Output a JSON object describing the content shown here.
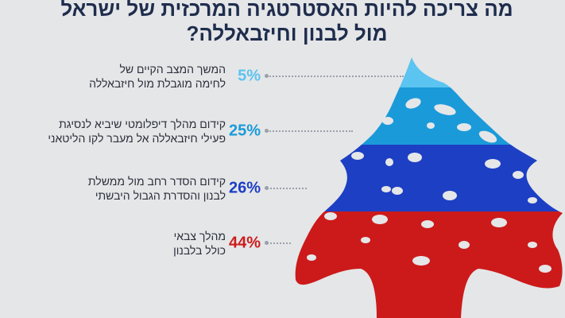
{
  "title": {
    "line1": "מה צריכה להיות האסטרטגיה המרכזית של ישראל",
    "line2": "מול לבנון וחיזבאללה?"
  },
  "chart_data": {
    "type": "bar",
    "categories": [
      "המשך המצב הקיים של לחימה מוגבלת מול חיזבאללה",
      "קידום מהלך דיפלומטי שיביא לנסיגת פעילי חיזבאללה אל מעבר לקו הליטאני",
      "קידום הסדר רחב מול ממשלת לבנון והסדרת הגבול היבשתי",
      "מהלך צבאי כולל בלבנון"
    ],
    "values": [
      5,
      25,
      26,
      44
    ],
    "unit": "%"
  },
  "rows": [
    {
      "pct": "5%",
      "line1": "המשך המצב הקיים של",
      "line2": "לחימה מוגבלת מול חיזבאללה",
      "color": "#5bc4f0"
    },
    {
      "pct": "25%",
      "line1": "קידום מהלך דיפלומטי שיביא לנסיגת",
      "line2": "פעילי חיזבאללה אל מעבר לקו הליטאני",
      "color": "#1a9ad9"
    },
    {
      "pct": "26%",
      "line1": "קידום הסדר רחב מול ממשלת",
      "line2": "לבנון והסדרת הגבול היבשתי",
      "color": "#1d3fc4"
    },
    {
      "pct": "44%",
      "line1": "מהלך צבאי",
      "line2": "כולל בלבנון",
      "color": "#cc1a1a"
    }
  ],
  "colors": {
    "light_blue": "#5bc4f0",
    "mid_blue": "#1a9ad9",
    "royal_blue": "#1d3fc4",
    "red": "#cc1a1a",
    "title": "#1f2d4d"
  }
}
